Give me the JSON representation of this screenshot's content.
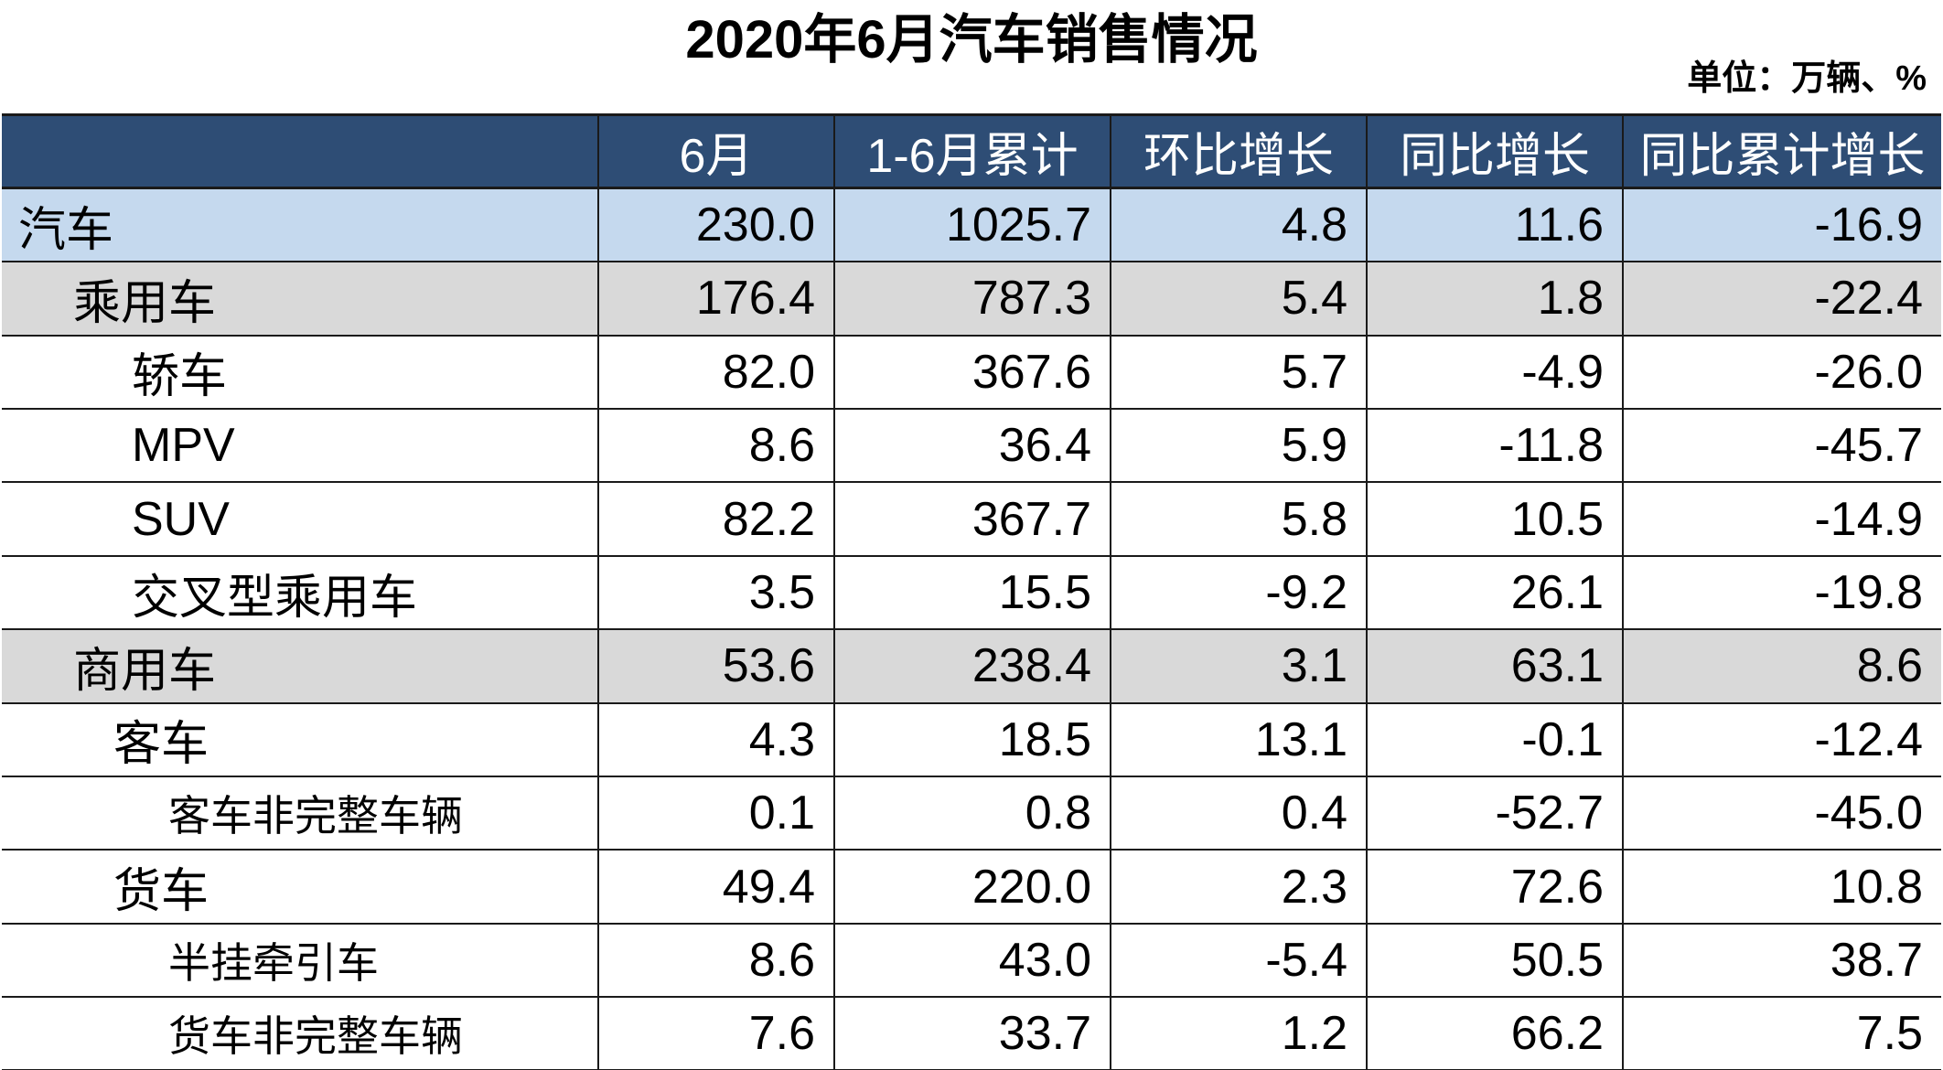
{
  "title": "2020年6月汽车销售情况",
  "unit": "单位：万辆、%",
  "colors": {
    "header_bg": "#2e4d75",
    "header_text": "#ffffff",
    "total_row_bg": "#c5d9ee",
    "major_row_bg": "#d9d9d9"
  },
  "table": {
    "headers": [
      "",
      "6月",
      "1-6月累计",
      "环比增长",
      "同比增长",
      "同比累计增长"
    ],
    "rows": [
      {
        "level": "total",
        "label": "汽车",
        "values": [
          "230.0",
          "1025.7",
          "4.8",
          "11.6",
          "-16.9"
        ]
      },
      {
        "level": "major",
        "label": "乘用车",
        "values": [
          "176.4",
          "787.3",
          "5.4",
          "1.8",
          "-22.4"
        ]
      },
      {
        "level": "sub",
        "label": "轿车",
        "values": [
          "82.0",
          "367.6",
          "5.7",
          "-4.9",
          "-26.0"
        ]
      },
      {
        "level": "sub",
        "label": "MPV",
        "values": [
          "8.6",
          "36.4",
          "5.9",
          "-11.8",
          "-45.7"
        ]
      },
      {
        "level": "sub",
        "label": "SUV",
        "values": [
          "82.2",
          "367.7",
          "5.8",
          "10.5",
          "-14.9"
        ]
      },
      {
        "level": "sub",
        "label": "交叉型乘用车",
        "values": [
          "3.5",
          "15.5",
          "-9.2",
          "26.1",
          "-19.8"
        ]
      },
      {
        "level": "major",
        "label": "商用车",
        "values": [
          "53.6",
          "238.4",
          "3.1",
          "63.1",
          "8.6"
        ]
      },
      {
        "level": "minor",
        "label": "客车",
        "values": [
          "4.3",
          "18.5",
          "13.1",
          "-0.1",
          "-12.4"
        ]
      },
      {
        "level": "detail",
        "label": "客车非完整车辆",
        "values": [
          "0.1",
          "0.8",
          "0.4",
          "-52.7",
          "-45.0"
        ]
      },
      {
        "level": "minor",
        "label": "货车",
        "values": [
          "49.4",
          "220.0",
          "2.3",
          "72.6",
          "10.8"
        ]
      },
      {
        "level": "detail",
        "label": "半挂牵引车",
        "values": [
          "8.6",
          "43.0",
          "-5.4",
          "50.5",
          "38.7"
        ]
      },
      {
        "level": "detail",
        "label": "货车非完整车辆",
        "values": [
          "7.6",
          "33.7",
          "1.2",
          "66.2",
          "7.5"
        ]
      }
    ]
  }
}
